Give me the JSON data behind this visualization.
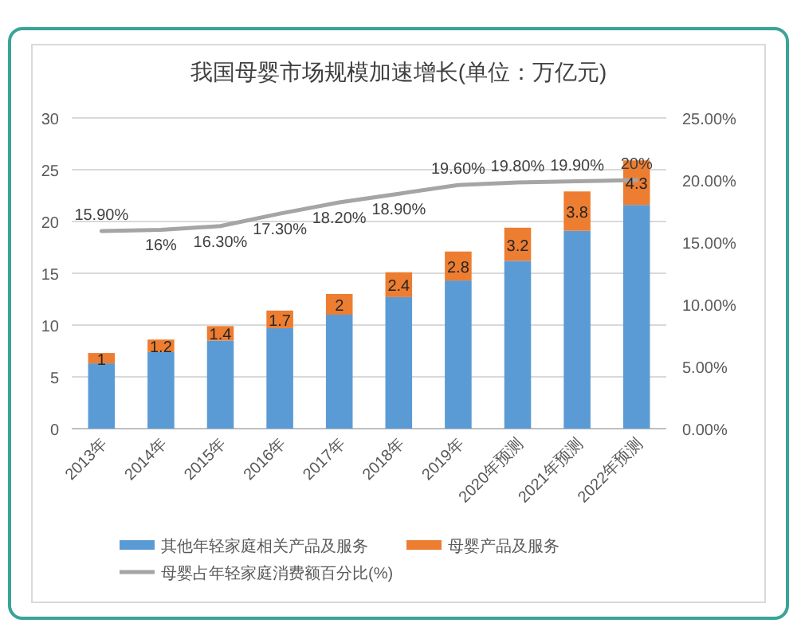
{
  "chart_data": {
    "type": "bar",
    "title": "我国母婴市场规模加速增长(单位：万亿元)",
    "stacked": true,
    "categories": [
      "2013年",
      "2014年",
      "2015年",
      "2016年",
      "2017年",
      "2018年",
      "2019年",
      "2020年预测",
      "2021年预测",
      "2022年预测"
    ],
    "series": [
      {
        "name": "其他年轻家庭相关产品及服务",
        "color": "#5b9bd5",
        "values": [
          6.3,
          7.4,
          8.5,
          9.7,
          11.0,
          12.7,
          14.3,
          16.2,
          19.1,
          21.6
        ]
      },
      {
        "name": "母婴产品及服务",
        "color": "#ed7d31",
        "values": [
          1,
          1.2,
          1.4,
          1.7,
          2,
          2.4,
          2.8,
          3.2,
          3.8,
          4.3
        ],
        "value_labels": [
          "1",
          "1.2",
          "1.4",
          "1.7",
          "2",
          "2.4",
          "2.8",
          "3.2",
          "3.8",
          "4.3"
        ]
      },
      {
        "name": "母婴占年轻家庭消费额百分比(%)",
        "type": "line",
        "axis": "y2",
        "color": "#a5a5a5",
        "values": [
          15.9,
          16,
          16.3,
          17.3,
          18.2,
          18.9,
          19.6,
          19.8,
          19.9,
          20
        ],
        "value_labels": [
          "15.90%",
          "16%",
          "16.30%",
          "17.30%",
          "18.20%",
          "18.90%",
          "19.60%",
          "19.80%",
          "19.90%",
          "20%"
        ]
      }
    ],
    "ylim": [
      0,
      30
    ],
    "yticks": [
      0,
      5,
      10,
      15,
      20,
      25,
      30
    ],
    "y2lim": [
      0,
      25
    ],
    "y2ticks": [
      {
        "value": 0,
        "label": "0.00%"
      },
      {
        "value": 5,
        "label": "5.00%"
      },
      {
        "value": 10,
        "label": "10.00%"
      },
      {
        "value": 15,
        "label": "15.00%"
      },
      {
        "value": 20,
        "label": "20.00%"
      },
      {
        "value": 25,
        "label": "25.00%"
      }
    ],
    "grid": "y",
    "legend": "bottom",
    "marker": "none",
    "line_style": "solid"
  }
}
